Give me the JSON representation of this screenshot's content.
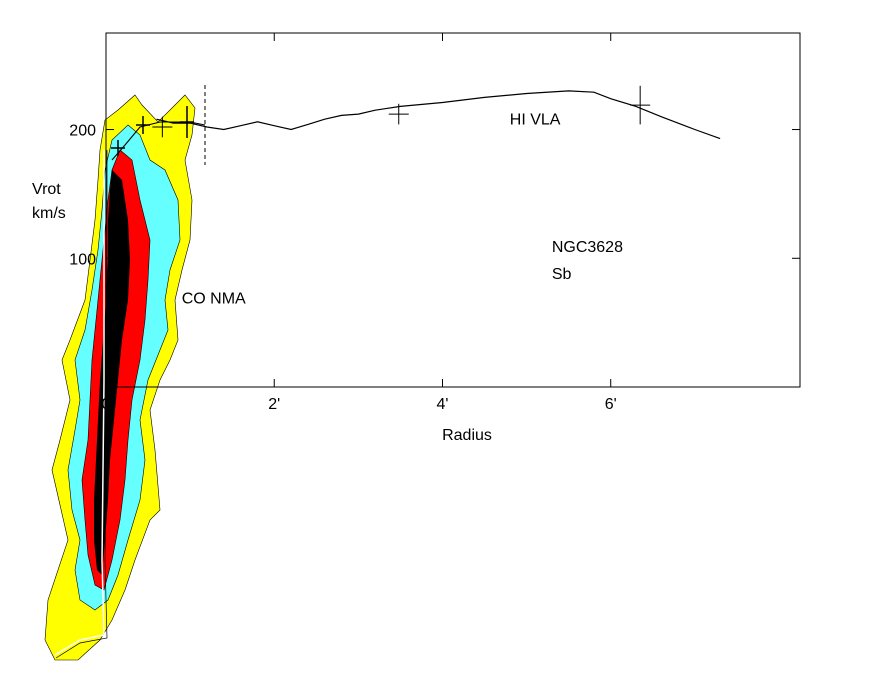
{
  "chart_data": {
    "type": "line",
    "title": "",
    "xlabel": "Radius",
    "ylabel": [
      "Vrot",
      "km/s"
    ],
    "xlim": [
      0,
      8.25
    ],
    "ylim": [
      0,
      275
    ],
    "x_ticks": [
      {
        "value": 0,
        "label": "0"
      },
      {
        "value": 2,
        "label": "2'"
      },
      {
        "value": 4,
        "label": "4'"
      },
      {
        "value": 6,
        "label": "6'"
      }
    ],
    "y_ticks": [
      {
        "value": 100,
        "label": "100"
      },
      {
        "value": 200,
        "label": "200"
      }
    ],
    "grid": false,
    "series": [
      {
        "name": "HI VLA",
        "x": [
          0.6,
          0.8,
          1.0,
          1.2,
          1.4,
          1.6,
          1.8,
          2.0,
          2.2,
          2.4,
          2.6,
          2.8,
          3.0,
          3.2,
          3.5,
          4.0,
          4.5,
          5.0,
          5.5,
          5.8,
          6.0,
          6.3,
          6.6,
          7.0,
          7.3
        ],
        "y": [
          208,
          205,
          205,
          202,
          200,
          203,
          206,
          203,
          200,
          204,
          208,
          211,
          212,
          215,
          218,
          221,
          225,
          228,
          230,
          229,
          224,
          218,
          210,
          200,
          193
        ]
      }
    ],
    "error_marks": [
      {
        "x": 0.67,
        "y": 202,
        "err": 8
      },
      {
        "x": 3.48,
        "y": 212,
        "err": 8
      },
      {
        "x": 6.35,
        "y": 219,
        "err": 15
      }
    ],
    "annotations": [
      {
        "text": "HI VLA",
        "x": 4.8,
        "y": 204
      },
      {
        "text": "CO NMA",
        "x": 0.9,
        "y": 65
      },
      {
        "text": "NGC3628",
        "x": 5.3,
        "y": 105
      },
      {
        "text": "Sb",
        "x": 5.3,
        "y": 84
      }
    ],
    "co_pv_diagram": {
      "name": "CO NMA",
      "colors": {
        "lowest": "#ffff00",
        "low": "#66ffff",
        "mid": "#ff0000",
        "high": "#000000"
      }
    }
  }
}
